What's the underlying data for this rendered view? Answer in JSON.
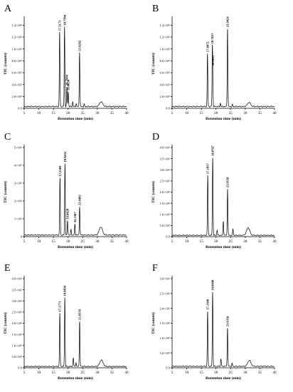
{
  "chart_data": [
    {
      "type": "line",
      "panel": "A",
      "xlabel": "Retention time (min)",
      "ylabel": "TIC (counts)",
      "xlim": [
        5,
        40
      ],
      "ylim": [
        0,
        1500000
      ],
      "x_ticks": [
        "5",
        "10",
        "15",
        "20",
        "25",
        "30",
        "35",
        "40"
      ],
      "y_ticks": [
        "0.0",
        "2.0×10⁵",
        "4.0×10⁵",
        "6.0×10⁵",
        "8.0×10⁵",
        "1.0×10⁶",
        "1.2×10⁶",
        "1.4×10⁶"
      ],
      "y_tick_values": [
        0,
        200000,
        400000,
        600000,
        800000,
        1000000,
        1200000,
        1400000
      ],
      "baseline": 30000,
      "peaks": [
        {
          "x": 17.1173,
          "y": 1280000,
          "label": "17.1173"
        },
        {
          "x": 18.7994,
          "y": 1370000,
          "label": "18.7994"
        },
        {
          "x": 19.5904,
          "y": 350000,
          "label": "19.5904"
        },
        {
          "x": 20.0624,
          "y": 280000,
          "label": "20.0624"
        },
        {
          "x": 23.9292,
          "y": 950000,
          "label": "23.9292"
        },
        {
          "x": 21.6,
          "y": 110000,
          "label": ""
        },
        {
          "x": 22.8,
          "y": 80000,
          "label": ""
        },
        {
          "x": 25.5,
          "y": 70000,
          "label": ""
        },
        {
          "x": 31.3,
          "y": 110000,
          "label": ""
        }
      ]
    },
    {
      "type": "line",
      "panel": "B",
      "xlabel": "Retention time (min)",
      "ylabel": "TIC (counts)",
      "xlim": [
        5,
        40
      ],
      "ylim": [
        0,
        1500000
      ],
      "x_ticks": [
        "5",
        "10",
        "15",
        "20",
        "25",
        "30",
        "35",
        "40"
      ],
      "y_ticks": [
        "0.0",
        "2.0×10⁵",
        "4.0×10⁵",
        "6.0×10⁵",
        "8.0×10⁵",
        "1.0×10⁶",
        "1.2×10⁶",
        "1.4×10⁶"
      ],
      "y_tick_values": [
        0,
        200000,
        400000,
        600000,
        800000,
        1000000,
        1200000,
        1400000
      ],
      "baseline": 30000,
      "peaks": [
        {
          "x": 17.0972,
          "y": 920000,
          "label": "17.0972"
        },
        {
          "x": 18.7637,
          "y": 950000,
          "label": "18.7637"
        },
        {
          "x": 18.9031,
          "y": 280000,
          "label": "18.9031"
        },
        {
          "x": 23.9424,
          "y": 1350000,
          "label": "23.9424"
        },
        {
          "x": 21.5,
          "y": 90000,
          "label": ""
        },
        {
          "x": 25.6,
          "y": 60000,
          "label": ""
        },
        {
          "x": 31.3,
          "y": 100000,
          "label": ""
        }
      ]
    },
    {
      "type": "line",
      "panel": "C",
      "xlabel": "Retention time (min)",
      "ylabel": "TIC (counts)",
      "xlim": [
        5,
        40
      ],
      "ylim": [
        0,
        5000000
      ],
      "x_ticks": [
        "5",
        "10",
        "15",
        "20",
        "25",
        "30",
        "35",
        "40"
      ],
      "y_ticks": [
        "0",
        "1×10⁶",
        "2×10⁶",
        "3×10⁶",
        "4×10⁶",
        "5×10⁶"
      ],
      "y_tick_values": [
        0,
        1000000,
        2000000,
        3000000,
        4000000,
        5000000
      ],
      "baseline": 90000,
      "peaks": [
        {
          "x": 17.2369,
          "y": 3300000,
          "label": "17.2369"
        },
        {
          "x": 18.9432,
          "y": 4100000,
          "label": "18.9432"
        },
        {
          "x": 19.8428,
          "y": 900000,
          "label": "19.8428"
        },
        {
          "x": 22.3367,
          "y": 700000,
          "label": "22.3367"
        },
        {
          "x": 23.9493,
          "y": 1700000,
          "label": "23.9493"
        },
        {
          "x": 21.0,
          "y": 400000,
          "label": ""
        },
        {
          "x": 31.2,
          "y": 550000,
          "label": ""
        }
      ]
    },
    {
      "type": "line",
      "panel": "D",
      "xlabel": "Retention time (min)",
      "ylabel": "TIC (counts)",
      "xlim": [
        5,
        40
      ],
      "ylim": [
        0,
        4000000
      ],
      "x_ticks": [
        "5",
        "10",
        "15",
        "20",
        "25",
        "30",
        "35",
        "40"
      ],
      "y_ticks": [
        "0.0",
        "5.0×10⁵",
        "1.0×10⁶",
        "1.5×10⁶",
        "2.0×10⁶",
        "2.5×10⁶",
        "3.0×10⁶",
        "3.5×10⁶",
        "4.0×10⁶"
      ],
      "y_tick_values": [
        0,
        500000,
        1000000,
        1500000,
        2000000,
        2500000,
        3000000,
        3500000,
        4000000
      ],
      "baseline": 60000,
      "peaks": [
        {
          "x": 17.1837,
          "y": 2750000,
          "label": "17.1837"
        },
        {
          "x": 18.8767,
          "y": 3550000,
          "label": "18.8767"
        },
        {
          "x": 23.9558,
          "y": 2150000,
          "label": "23.9558"
        },
        {
          "x": 20.4,
          "y": 300000,
          "label": ""
        },
        {
          "x": 22.5,
          "y": 700000,
          "label": ""
        },
        {
          "x": 25.8,
          "y": 350000,
          "label": ""
        },
        {
          "x": 31.0,
          "y": 400000,
          "label": ""
        }
      ]
    },
    {
      "type": "line",
      "panel": "E",
      "xlabel": "Retention time (min)",
      "ylabel": "TIC (counts)",
      "xlim": [
        5,
        40
      ],
      "ylim": [
        0,
        4000000
      ],
      "x_ticks": [
        "5",
        "10",
        "15",
        "20",
        "25",
        "30",
        "35",
        "40"
      ],
      "y_ticks": [
        "0.0",
        "5.0×10⁵",
        "1.0×10⁶",
        "1.5×10⁶",
        "2.0×10⁶",
        "2.5×10⁶",
        "3.0×10⁶",
        "3.5×10⁶",
        "4.0×10⁶"
      ],
      "y_tick_values": [
        0,
        500000,
        1000000,
        1500000,
        2000000,
        2500000,
        3000000,
        3500000,
        4000000
      ],
      "baseline": 60000,
      "peaks": [
        {
          "x": 17.1771,
          "y": 2450000,
          "label": "17.1771"
        },
        {
          "x": 18.8834,
          "y": 3150000,
          "label": "18.8834"
        },
        {
          "x": 23.9559,
          "y": 2100000,
          "label": "23.9559"
        },
        {
          "x": 21.8,
          "y": 450000,
          "label": ""
        },
        {
          "x": 22.7,
          "y": 250000,
          "label": ""
        },
        {
          "x": 31.4,
          "y": 350000,
          "label": ""
        }
      ]
    },
    {
      "type": "line",
      "panel": "F",
      "xlabel": "Retention time (min)",
      "ylabel": "TIC (counts)",
      "xlim": [
        5,
        40
      ],
      "ylim": [
        0,
        3000000
      ],
      "x_ticks": [
        "5",
        "10",
        "15",
        "20",
        "25",
        "30",
        "35",
        "40"
      ],
      "y_ticks": [
        "0.0",
        "5.0×10⁵",
        "1.0×10⁶",
        "1.5×10⁶",
        "2.0×10⁶",
        "2.5×10⁶",
        "3.0×10⁶"
      ],
      "y_tick_values": [
        0,
        500000,
        1000000,
        1500000,
        2000000,
        2500000,
        3000000
      ],
      "baseline": 50000,
      "peaks": [
        {
          "x": 17.1368,
          "y": 1900000,
          "label": "17.1368"
        },
        {
          "x": 18.8498,
          "y": 2550000,
          "label": "18.8498"
        },
        {
          "x": 23.9356,
          "y": 1350000,
          "label": "23.9356"
        },
        {
          "x": 21.7,
          "y": 300000,
          "label": ""
        },
        {
          "x": 25.5,
          "y": 150000,
          "label": ""
        },
        {
          "x": 31.4,
          "y": 250000,
          "label": ""
        }
      ]
    }
  ]
}
